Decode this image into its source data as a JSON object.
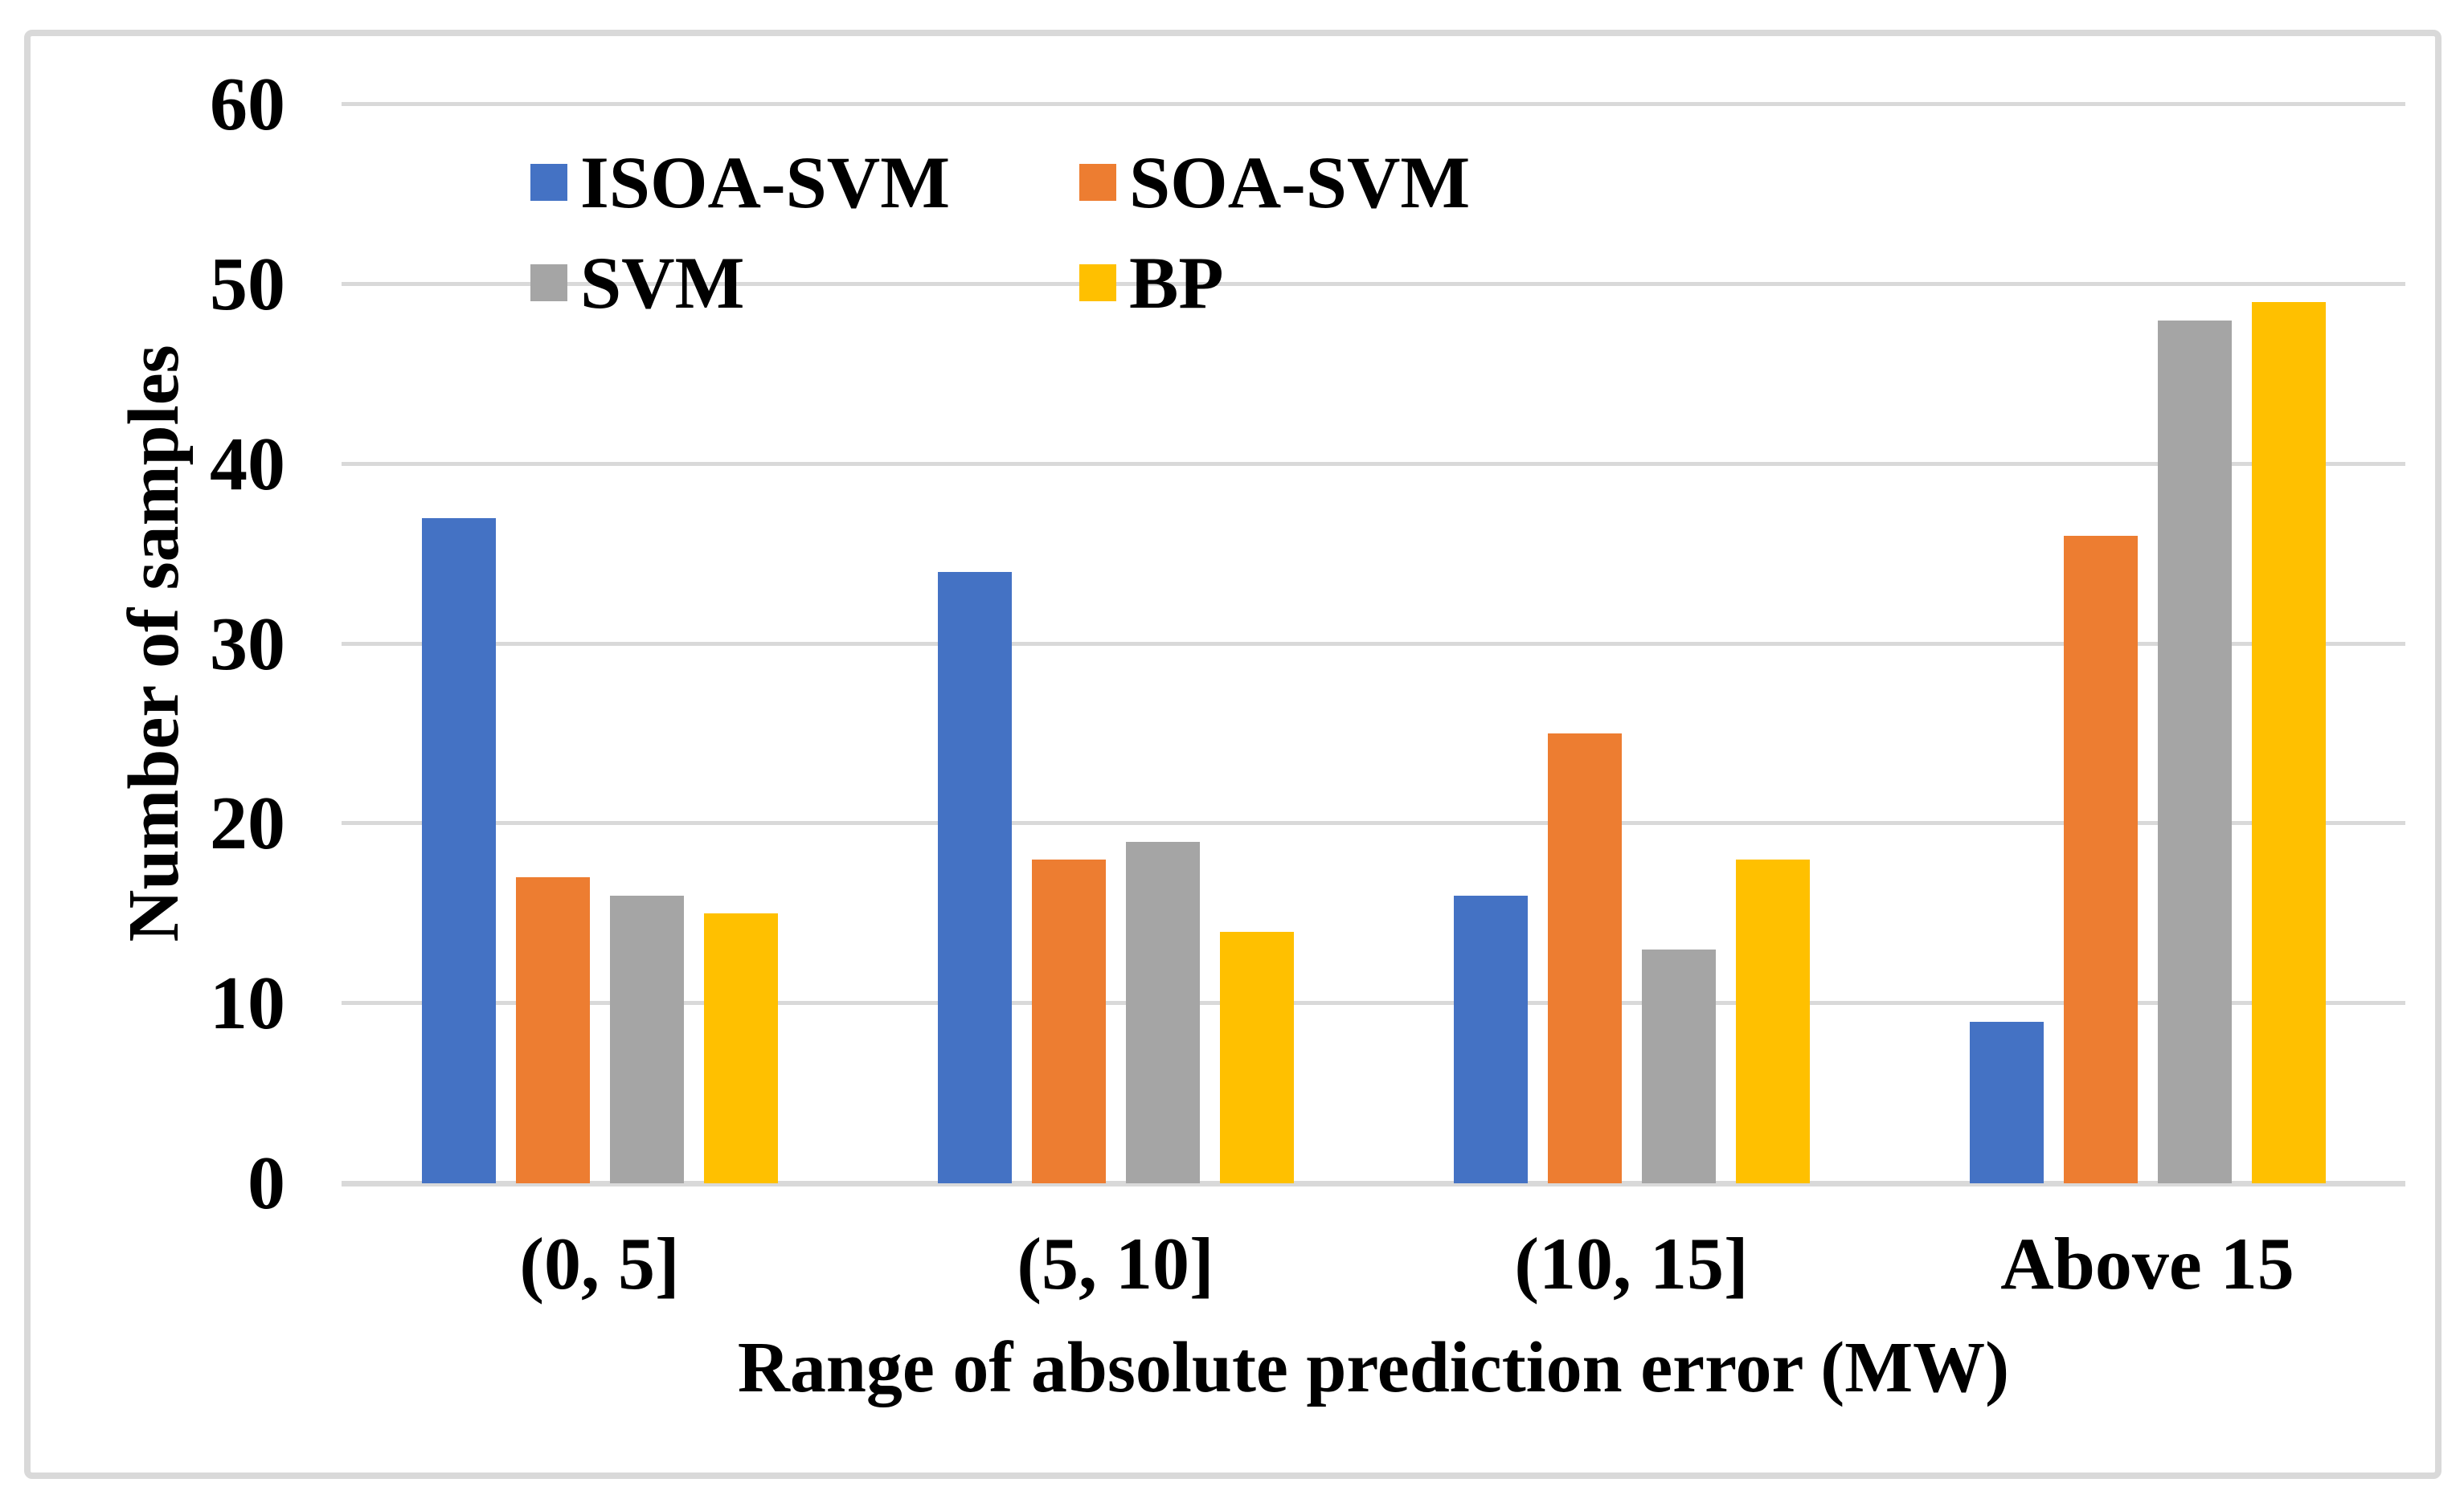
{
  "figure": {
    "background_color": "#FFFFFF",
    "border_color": "#D9D9D9"
  },
  "chart_data": {
    "type": "bar",
    "title": "",
    "categories": [
      "(0, 5]",
      "(5, 10]",
      "(10, 15]",
      "Above 15"
    ],
    "series": [
      {
        "name": "ISOA-SVM",
        "color": "#4472C4",
        "values": [
          37,
          34,
          16,
          9
        ]
      },
      {
        "name": "SOA-SVM",
        "color": "#ED7D31",
        "values": [
          17,
          18,
          25,
          36
        ]
      },
      {
        "name": "SVM",
        "color": "#A5A5A5",
        "values": [
          16,
          19,
          13,
          48
        ]
      },
      {
        "name": "BP",
        "color": "#FFC000",
        "values": [
          15,
          14,
          18,
          49
        ]
      }
    ],
    "xlabel": "Range of absolute prediction error (MW)",
    "ylabel": "Number of samples",
    "ylim": [
      0,
      60
    ],
    "y_ticks": [
      0,
      10,
      20,
      30,
      40,
      50,
      60
    ],
    "grid": "horizontal",
    "gridline_color": "#D9D9D9",
    "text_color": "#000000",
    "legend_position": "top-inside",
    "legend_rows": [
      [
        "ISOA-SVM",
        "SOA-SVM"
      ],
      [
        "SVM",
        "BP"
      ]
    ]
  }
}
